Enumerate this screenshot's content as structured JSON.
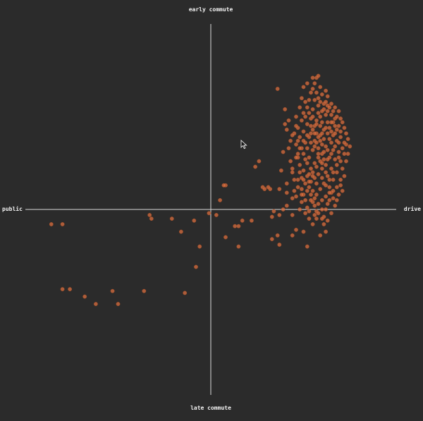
{
  "chart_data": {
    "type": "scatter",
    "title": "",
    "xlabel_left": "public",
    "xlabel_right": "drive",
    "ylabel_top": "early commute",
    "ylabel_bottom": "late commute",
    "xlim": [
      -1,
      1
    ],
    "ylim": [
      -1,
      1
    ],
    "grid": false,
    "point_color": "#e07040",
    "background": "#2b2b2b",
    "axis_color": "#d8d8d8",
    "points": [
      [
        -0.86,
        -0.08
      ],
      [
        -0.8,
        -0.08
      ],
      [
        -0.8,
        -0.43
      ],
      [
        -0.76,
        -0.43
      ],
      [
        -0.68,
        -0.47
      ],
      [
        -0.62,
        -0.51
      ],
      [
        -0.53,
        -0.44
      ],
      [
        -0.5,
        -0.51
      ],
      [
        -0.36,
        -0.44
      ],
      [
        -0.33,
        -0.03
      ],
      [
        -0.32,
        -0.05
      ],
      [
        -0.21,
        -0.05
      ],
      [
        -0.16,
        -0.12
      ],
      [
        -0.14,
        -0.45
      ],
      [
        -0.09,
        -0.06
      ],
      [
        -0.08,
        -0.31
      ],
      [
        -0.06,
        -0.2
      ],
      [
        -0.01,
        -0.02
      ],
      [
        0.03,
        -0.03
      ],
      [
        0.05,
        0.05
      ],
      [
        0.08,
        0.13
      ],
      [
        0.07,
        0.13
      ],
      [
        0.13,
        -0.09
      ],
      [
        0.08,
        -0.15
      ],
      [
        0.15,
        -0.2
      ],
      [
        0.17,
        -0.06
      ],
      [
        0.15,
        -0.09
      ],
      [
        0.22,
        -0.06
      ],
      [
        0.24,
        0.23
      ],
      [
        0.26,
        0.26
      ],
      [
        0.28,
        0.12
      ],
      [
        0.32,
        0.11
      ],
      [
        0.31,
        0.12
      ],
      [
        0.37,
        0.11
      ],
      [
        0.29,
        0.11
      ],
      [
        0.33,
        -0.04
      ],
      [
        0.34,
        -0.01
      ],
      [
        0.37,
        -0.03
      ],
      [
        0.39,
        0.0
      ],
      [
        0.33,
        -0.16
      ],
      [
        0.37,
        -0.19
      ],
      [
        0.36,
        -0.14
      ],
      [
        0.41,
        0.02
      ],
      [
        0.44,
        -0.03
      ],
      [
        0.46,
        -0.11
      ],
      [
        0.44,
        -0.14
      ],
      [
        0.5,
        -0.12
      ],
      [
        0.52,
        -0.2
      ],
      [
        0.53,
        -0.01
      ],
      [
        0.56,
        -0.03
      ],
      [
        0.59,
        -0.14
      ],
      [
        0.61,
        -0.04
      ],
      [
        0.62,
        -0.12
      ],
      [
        0.36,
        0.65
      ],
      [
        0.4,
        0.54
      ],
      [
        0.41,
        0.43
      ],
      [
        0.42,
        0.33
      ],
      [
        0.43,
        0.26
      ],
      [
        0.44,
        0.2
      ],
      [
        0.47,
        0.16
      ],
      [
        0.49,
        0.11
      ],
      [
        0.44,
        0.06
      ],
      [
        0.49,
        0.04
      ],
      [
        0.4,
        0.46
      ],
      [
        0.43,
        0.37
      ],
      [
        0.44,
        0.22
      ],
      [
        0.41,
        0.14
      ],
      [
        0.45,
        0.1
      ],
      [
        0.46,
        0.07
      ],
      [
        0.41,
        0.09
      ],
      [
        0.38,
        0.21
      ],
      [
        0.39,
        0.31
      ],
      [
        0.47,
        0.28
      ],
      [
        0.52,
        0.68
      ],
      [
        0.5,
        0.66
      ],
      [
        0.53,
        0.59
      ],
      [
        0.55,
        0.71
      ],
      [
        0.57,
        0.71
      ],
      [
        0.58,
        0.72
      ],
      [
        0.56,
        0.68
      ],
      [
        0.6,
        0.62
      ],
      [
        0.63,
        0.61
      ],
      [
        0.62,
        0.64
      ],
      [
        0.65,
        0.57
      ],
      [
        0.67,
        0.55
      ],
      [
        0.69,
        0.53
      ],
      [
        0.7,
        0.49
      ],
      [
        0.72,
        0.44
      ],
      [
        0.73,
        0.35
      ],
      [
        0.75,
        0.34
      ],
      [
        0.74,
        0.3
      ],
      [
        0.73,
        0.26
      ],
      [
        0.7,
        0.13
      ],
      [
        0.71,
        0.1
      ],
      [
        0.68,
        0.05
      ],
      [
        0.65,
        0.09
      ],
      [
        0.63,
        0.03
      ],
      [
        0.6,
        0.0
      ],
      [
        0.57,
        -0.01
      ],
      [
        0.55,
        0.04
      ],
      [
        0.5,
        0.08
      ],
      [
        0.52,
        0.01
      ],
      [
        0.48,
        0.0
      ],
      [
        0.46,
        0.5
      ],
      [
        0.48,
        0.55
      ],
      [
        0.49,
        0.6
      ],
      [
        0.51,
        0.58
      ],
      [
        0.54,
        0.49
      ],
      [
        0.56,
        0.45
      ],
      [
        0.58,
        0.52
      ],
      [
        0.6,
        0.47
      ],
      [
        0.62,
        0.51
      ],
      [
        0.64,
        0.44
      ],
      [
        0.66,
        0.4
      ],
      [
        0.68,
        0.37
      ],
      [
        0.66,
        0.32
      ],
      [
        0.64,
        0.28
      ],
      [
        0.62,
        0.24
      ],
      [
        0.6,
        0.22
      ],
      [
        0.58,
        0.19
      ],
      [
        0.56,
        0.17
      ],
      [
        0.54,
        0.15
      ],
      [
        0.52,
        0.18
      ],
      [
        0.5,
        0.21
      ],
      [
        0.48,
        0.24
      ],
      [
        0.47,
        0.3
      ],
      [
        0.46,
        0.35
      ],
      [
        0.48,
        0.39
      ],
      [
        0.5,
        0.42
      ],
      [
        0.52,
        0.46
      ],
      [
        0.54,
        0.41
      ],
      [
        0.56,
        0.37
      ],
      [
        0.58,
        0.33
      ],
      [
        0.6,
        0.3
      ],
      [
        0.62,
        0.34
      ],
      [
        0.64,
        0.38
      ],
      [
        0.66,
        0.47
      ],
      [
        0.68,
        0.43
      ],
      [
        0.7,
        0.39
      ],
      [
        0.69,
        0.31
      ],
      [
        0.67,
        0.27
      ],
      [
        0.65,
        0.22
      ],
      [
        0.63,
        0.18
      ],
      [
        0.61,
        0.14
      ],
      [
        0.59,
        0.11
      ],
      [
        0.57,
        0.08
      ],
      [
        0.55,
        0.1
      ],
      [
        0.53,
        0.12
      ],
      [
        0.51,
        0.14
      ],
      [
        0.49,
        0.17
      ],
      [
        0.53,
        0.28
      ],
      [
        0.55,
        0.32
      ],
      [
        0.57,
        0.36
      ],
      [
        0.59,
        0.4
      ],
      [
        0.61,
        0.43
      ],
      [
        0.63,
        0.47
      ],
      [
        0.65,
        0.51
      ],
      [
        0.67,
        0.49
      ],
      [
        0.58,
        0.56
      ],
      [
        0.56,
        0.59
      ],
      [
        0.54,
        0.63
      ],
      [
        0.52,
        0.55
      ],
      [
        0.5,
        0.52
      ],
      [
        0.55,
        0.54
      ],
      [
        0.57,
        0.48
      ],
      [
        0.59,
        0.45
      ],
      [
        0.61,
        0.38
      ],
      [
        0.63,
        0.41
      ],
      [
        0.6,
        0.35
      ],
      [
        0.58,
        0.28
      ],
      [
        0.56,
        0.25
      ],
      [
        0.54,
        0.22
      ],
      [
        0.52,
        0.25
      ],
      [
        0.5,
        0.3
      ],
      [
        0.51,
        0.36
      ],
      [
        0.53,
        0.39
      ],
      [
        0.55,
        0.43
      ],
      [
        0.57,
        0.41
      ],
      [
        0.59,
        0.37
      ],
      [
        0.61,
        0.31
      ],
      [
        0.63,
        0.27
      ],
      [
        0.65,
        0.3
      ],
      [
        0.67,
        0.34
      ],
      [
        0.69,
        0.28
      ],
      [
        0.71,
        0.22
      ],
      [
        0.72,
        0.18
      ],
      [
        0.7,
        0.16
      ],
      [
        0.68,
        0.2
      ],
      [
        0.66,
        0.16
      ],
      [
        0.64,
        0.12
      ],
      [
        0.62,
        0.07
      ],
      [
        0.6,
        0.05
      ],
      [
        0.58,
        0.03
      ],
      [
        0.56,
        0.06
      ],
      [
        0.54,
        0.08
      ],
      [
        0.53,
        0.19
      ],
      [
        0.55,
        0.2
      ],
      [
        0.57,
        0.23
      ],
      [
        0.59,
        0.26
      ],
      [
        0.61,
        0.27
      ],
      [
        0.63,
        0.32
      ],
      [
        0.65,
        0.36
      ],
      [
        0.67,
        0.41
      ],
      [
        0.69,
        0.45
      ],
      [
        0.71,
        0.47
      ],
      [
        0.73,
        0.41
      ],
      [
        0.74,
        0.38
      ],
      [
        0.72,
        0.3
      ],
      [
        0.7,
        0.26
      ],
      [
        0.68,
        0.24
      ],
      [
        0.66,
        0.2
      ],
      [
        0.64,
        0.16
      ],
      [
        0.62,
        0.2
      ],
      [
        0.6,
        0.25
      ],
      [
        0.58,
        0.3
      ],
      [
        0.56,
        0.34
      ],
      [
        0.54,
        0.36
      ],
      [
        0.52,
        0.33
      ],
      [
        0.51,
        0.27
      ],
      [
        0.49,
        0.33
      ],
      [
        0.47,
        0.37
      ],
      [
        0.45,
        0.41
      ],
      [
        0.47,
        0.44
      ],
      [
        0.49,
        0.48
      ],
      [
        0.51,
        0.5
      ],
      [
        0.53,
        0.52
      ],
      [
        0.55,
        0.5
      ],
      [
        0.57,
        0.46
      ],
      [
        0.59,
        0.5
      ],
      [
        0.61,
        0.54
      ],
      [
        0.63,
        0.56
      ],
      [
        0.62,
        0.44
      ],
      [
        0.6,
        0.41
      ],
      [
        0.58,
        0.39
      ],
      [
        0.56,
        0.41
      ],
      [
        0.54,
        0.45
      ],
      [
        0.52,
        0.4
      ],
      [
        0.5,
        0.37
      ],
      [
        0.48,
        0.33
      ],
      [
        0.46,
        0.28
      ],
      [
        0.48,
        0.2
      ],
      [
        0.5,
        0.16
      ],
      [
        0.52,
        0.1
      ],
      [
        0.54,
        0.05
      ],
      [
        0.56,
        0.02
      ],
      [
        0.58,
        -0.02
      ],
      [
        0.6,
        -0.05
      ],
      [
        0.62,
        0.0
      ],
      [
        0.64,
        0.05
      ],
      [
        0.66,
        0.1
      ],
      [
        0.68,
        0.12
      ],
      [
        0.55,
        0.65
      ],
      [
        0.57,
        0.63
      ],
      [
        0.59,
        0.66
      ],
      [
        0.61,
        0.57
      ],
      [
        0.63,
        0.53
      ],
      [
        0.65,
        0.47
      ],
      [
        0.67,
        0.45
      ],
      [
        0.7,
        0.42
      ],
      [
        0.72,
        0.36
      ],
      [
        0.71,
        0.33
      ],
      [
        0.69,
        0.36
      ],
      [
        0.65,
        0.42
      ],
      [
        0.59,
        0.58
      ],
      [
        0.6,
        0.53
      ],
      [
        0.58,
        0.6
      ],
      [
        0.62,
        0.58
      ],
      [
        0.64,
        0.55
      ],
      [
        0.66,
        0.53
      ],
      [
        0.68,
        0.5
      ],
      [
        0.6,
        0.17
      ],
      [
        0.62,
        0.13
      ],
      [
        0.64,
        0.09
      ],
      [
        0.66,
        0.06
      ],
      [
        0.57,
        0.14
      ],
      [
        0.55,
        0.18
      ],
      [
        0.53,
        0.15
      ],
      [
        0.51,
        0.05
      ],
      [
        0.49,
        0.08
      ],
      [
        0.47,
        0.12
      ],
      [
        0.45,
        0.16
      ],
      [
        0.57,
        -0.05
      ],
      [
        0.55,
        -0.08
      ],
      [
        0.53,
        -0.05
      ],
      [
        0.51,
        -0.02
      ],
      [
        0.61,
        -0.08
      ],
      [
        0.63,
        -0.06
      ],
      [
        0.65,
        -0.02
      ],
      [
        0.67,
        0.02
      ],
      [
        0.69,
        0.08
      ],
      [
        0.46,
        0.45
      ],
      [
        0.44,
        0.4
      ],
      [
        0.42,
        0.48
      ]
    ]
  }
}
